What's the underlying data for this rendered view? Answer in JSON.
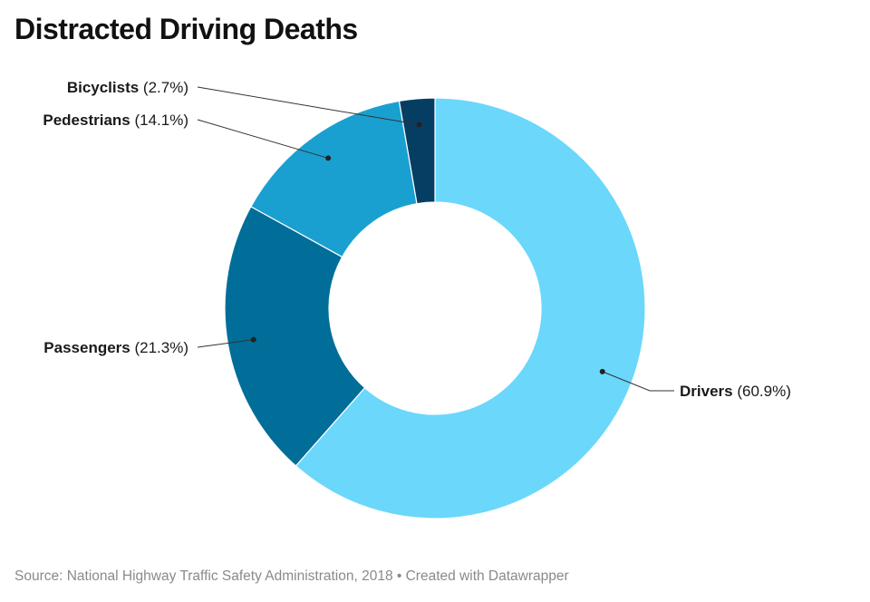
{
  "title": "Distracted Driving Deaths",
  "footer": {
    "source_text": "Source: National Highway Traffic Safety Administration, 2018 • Created with Datawrapper"
  },
  "chart_data": {
    "type": "pie",
    "variant": "donut",
    "title": "Distracted Driving Deaths",
    "start_angle_deg": 0,
    "direction": "clockwise",
    "slices": [
      {
        "name": "Drivers",
        "value": 60.9,
        "display": "(60.9%)",
        "color": "#6ad7fb"
      },
      {
        "name": "Passengers",
        "value": 21.3,
        "display": "(21.3%)",
        "color": "#006e98"
      },
      {
        "name": "Pedestrians",
        "value": 14.1,
        "display": "(14.1%)",
        "color": "#1aa0d0"
      },
      {
        "name": "Bicyclists",
        "value": 2.7,
        "display": "(2.7%)",
        "color": "#063e63"
      }
    ]
  }
}
